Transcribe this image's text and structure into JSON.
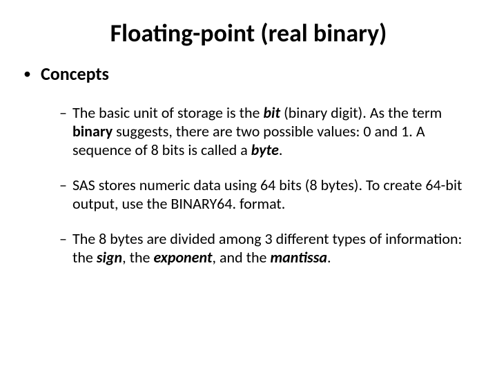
{
  "slide": {
    "title": "Floating-point (real binary)",
    "heading": "Concepts",
    "bullets": {
      "b1": {
        "pre1": "The basic unit of storage is the ",
        "bit": "bit",
        "post1": " (binary digit). As the term ",
        "binary": "binary",
        "post2": " suggests, there are two possible values: 0 and 1. A sequence of 8 bits is called a ",
        "byte": "byte",
        "post3": "."
      },
      "b2": {
        "text": "SAS stores numeric data using 64 bits (8 bytes). To create 64-bit output, use the BINARY64. format."
      },
      "b3": {
        "pre1": "The 8 bytes are divided among 3 different types of information: the ",
        "sign": "sign",
        "mid1": ", the ",
        "exponent": "exponent",
        "mid2": ", and the ",
        "mantissa": "mantissa",
        "post1": "."
      }
    }
  },
  "style": {
    "background": "#ffffff",
    "text_color": "#000000",
    "title_fontsize": 36,
    "level1_fontsize": 26,
    "level2_fontsize": 22
  }
}
